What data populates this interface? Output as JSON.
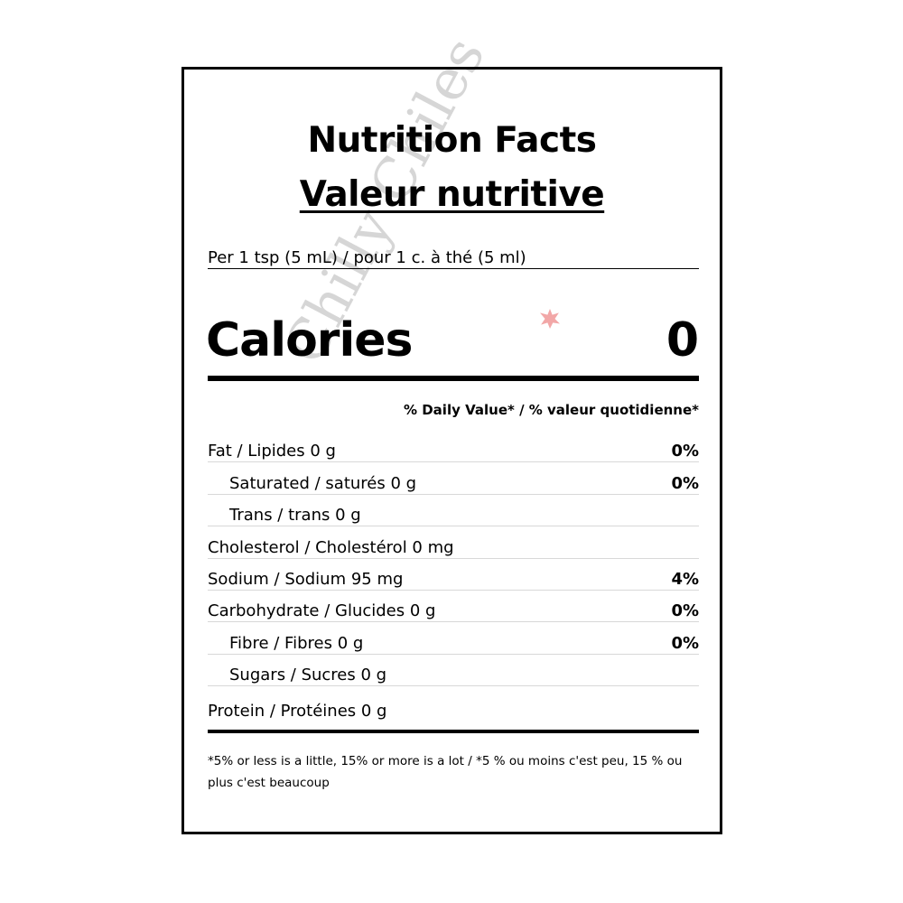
{
  "title_en": "Nutrition Facts",
  "title_fr": "Valeur nutritive",
  "serving": "Per 1 tsp (5 mL) / pour 1 c. à thé (5 ml)",
  "calories": {
    "label": "Calories",
    "value": "0"
  },
  "daily_value_header": "% Daily Value* / % valeur quotidienne*",
  "nutrients": [
    {
      "name": "Fat / Lipides 0 g",
      "dv": "0%"
    },
    {
      "name": "Saturated / saturés 0 g",
      "dv": "0%"
    },
    {
      "name": "Trans / trans 0 g",
      "dv": ""
    },
    {
      "name": "Cholesterol / Cholestérol 0 mg",
      "dv": ""
    },
    {
      "name": "Sodium / Sodium 95 mg",
      "dv": "4%"
    },
    {
      "name": "Carbohydrate / Glucides 0 g",
      "dv": "0%"
    },
    {
      "name": "Fibre / Fibres 0 g",
      "dv": "0%"
    },
    {
      "name": "Sugars / Sucres 0 g",
      "dv": ""
    },
    {
      "name": "Protein / Protéines 0 g",
      "dv": ""
    }
  ],
  "footnote": "*5% or less is a little, 15% or more is a lot / *5 % ou moins c'est peu, 15 % ou plus c'est beaucoup",
  "watermark": "Chilly Chiles"
}
